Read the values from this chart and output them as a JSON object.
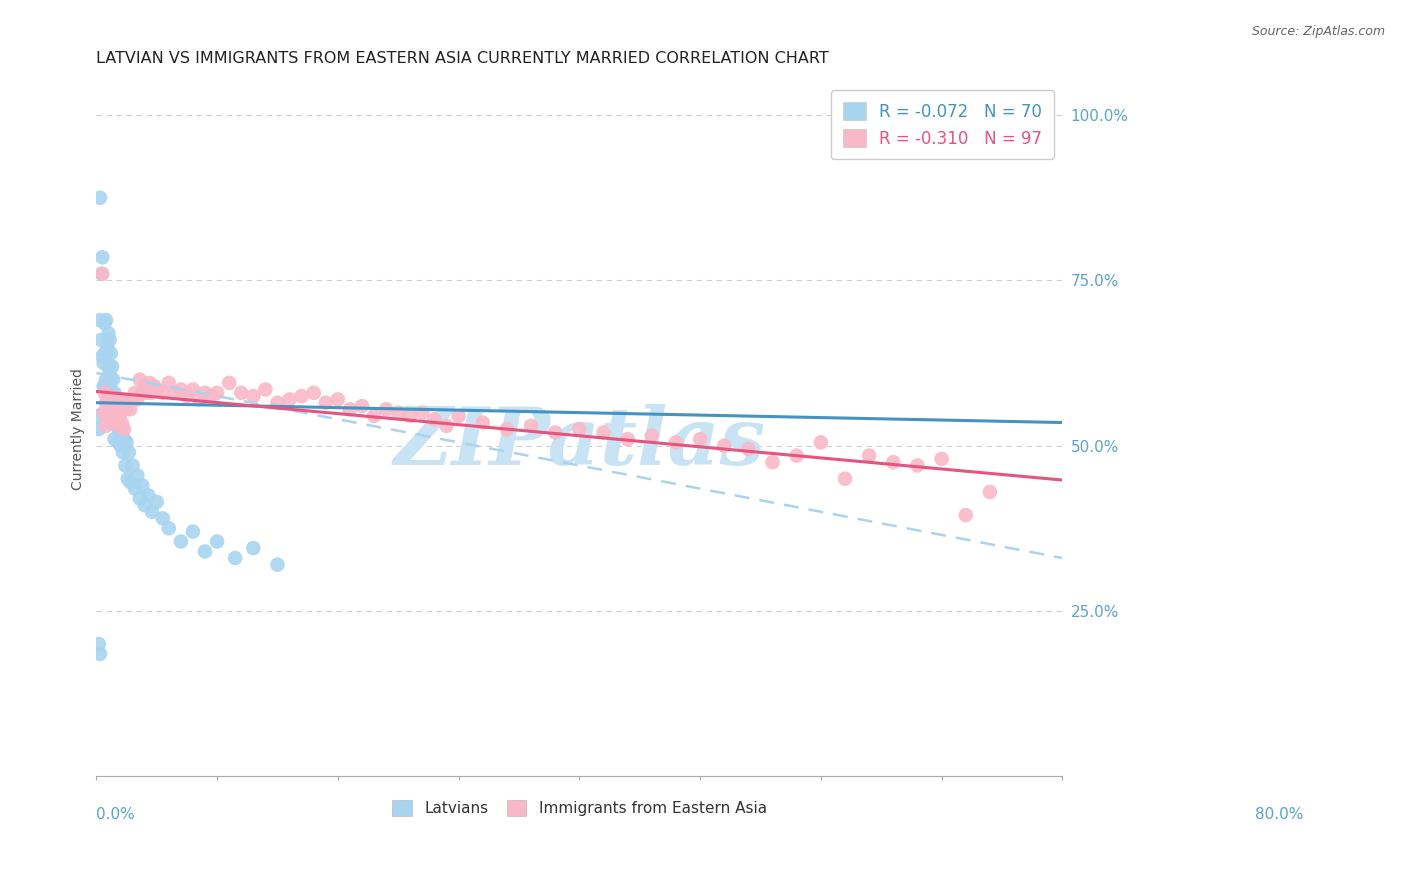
{
  "title": "LATVIAN VS IMMIGRANTS FROM EASTERN ASIA CURRENTLY MARRIED CORRELATION CHART",
  "source": "Source: ZipAtlas.com",
  "ylabel": "Currently Married",
  "right_ytick_vals": [
    1.0,
    0.75,
    0.5,
    0.25
  ],
  "right_ytick_labels": [
    "100.0%",
    "75.0%",
    "50.0%",
    "25.0%"
  ],
  "legend_label1": "R = -0.072   N = 70",
  "legend_label2": "R = -0.310   N = 97",
  "legend_label_bottom1": "Latvians",
  "legend_label_bottom2": "Immigrants from Eastern Asia",
  "blue_scatter_color": "#a8d4f0",
  "pink_scatter_color": "#f9b8c8",
  "blue_line_color": "#4393c3",
  "pink_line_color": "#e75480",
  "dashed_line_color": "#a8d4f0",
  "bg_color": "#ffffff",
  "grid_color": "#d0d0d0",
  "title_color": "#222222",
  "axis_label_color": "#5ba3d0",
  "watermark_color": "#c8e4f4",
  "xlim": [
    0.0,
    0.8
  ],
  "ylim": [
    0.0,
    1.05
  ],
  "blue_line_x0": 0.0,
  "blue_line_y0": 0.565,
  "blue_line_x1": 0.8,
  "blue_line_y1": 0.535,
  "pink_line_x0": 0.0,
  "pink_line_y0": 0.582,
  "pink_line_x1": 0.8,
  "pink_line_y1": 0.448,
  "dashed_line_x0": 0.0,
  "dashed_line_y0": 0.61,
  "dashed_line_x1": 0.8,
  "dashed_line_y1": 0.33,
  "latvian_x": [
    0.001,
    0.002,
    0.003,
    0.003,
    0.004,
    0.004,
    0.005,
    0.005,
    0.006,
    0.006,
    0.007,
    0.007,
    0.007,
    0.008,
    0.008,
    0.008,
    0.009,
    0.009,
    0.01,
    0.01,
    0.01,
    0.011,
    0.011,
    0.012,
    0.012,
    0.012,
    0.013,
    0.013,
    0.013,
    0.014,
    0.014,
    0.015,
    0.015,
    0.015,
    0.016,
    0.016,
    0.017,
    0.017,
    0.018,
    0.018,
    0.019,
    0.02,
    0.021,
    0.022,
    0.023,
    0.024,
    0.025,
    0.026,
    0.027,
    0.028,
    0.03,
    0.032,
    0.034,
    0.036,
    0.038,
    0.04,
    0.043,
    0.046,
    0.05,
    0.055,
    0.06,
    0.07,
    0.08,
    0.09,
    0.1,
    0.115,
    0.13,
    0.15,
    0.003,
    0.002
  ],
  "latvian_y": [
    0.545,
    0.525,
    0.875,
    0.69,
    0.66,
    0.76,
    0.635,
    0.785,
    0.625,
    0.59,
    0.685,
    0.64,
    0.59,
    0.69,
    0.64,
    0.6,
    0.65,
    0.59,
    0.67,
    0.62,
    0.57,
    0.66,
    0.61,
    0.64,
    0.6,
    0.555,
    0.62,
    0.58,
    0.535,
    0.6,
    0.56,
    0.58,
    0.545,
    0.51,
    0.57,
    0.535,
    0.565,
    0.53,
    0.54,
    0.505,
    0.52,
    0.5,
    0.53,
    0.49,
    0.51,
    0.47,
    0.505,
    0.45,
    0.49,
    0.445,
    0.47,
    0.435,
    0.455,
    0.42,
    0.44,
    0.41,
    0.425,
    0.4,
    0.415,
    0.39,
    0.375,
    0.355,
    0.37,
    0.34,
    0.355,
    0.33,
    0.345,
    0.32,
    0.185,
    0.2
  ],
  "pink_x": [
    0.005,
    0.006,
    0.007,
    0.008,
    0.009,
    0.01,
    0.011,
    0.012,
    0.013,
    0.014,
    0.015,
    0.016,
    0.017,
    0.018,
    0.019,
    0.02,
    0.022,
    0.024,
    0.025,
    0.026,
    0.028,
    0.03,
    0.032,
    0.034,
    0.036,
    0.038,
    0.04,
    0.042,
    0.044,
    0.046,
    0.048,
    0.05,
    0.055,
    0.06,
    0.065,
    0.07,
    0.075,
    0.08,
    0.085,
    0.09,
    0.095,
    0.1,
    0.11,
    0.12,
    0.13,
    0.14,
    0.15,
    0.16,
    0.17,
    0.18,
    0.19,
    0.2,
    0.21,
    0.22,
    0.23,
    0.24,
    0.25,
    0.26,
    0.27,
    0.28,
    0.29,
    0.3,
    0.32,
    0.34,
    0.36,
    0.38,
    0.4,
    0.42,
    0.44,
    0.46,
    0.48,
    0.5,
    0.52,
    0.54,
    0.56,
    0.58,
    0.6,
    0.62,
    0.64,
    0.66,
    0.68,
    0.7,
    0.72,
    0.74,
    0.008,
    0.01,
    0.012,
    0.014,
    0.016,
    0.009,
    0.011,
    0.013,
    0.015,
    0.017,
    0.019,
    0.021,
    0.023
  ],
  "pink_y": [
    0.76,
    0.55,
    0.58,
    0.565,
    0.57,
    0.56,
    0.575,
    0.555,
    0.565,
    0.56,
    0.54,
    0.57,
    0.555,
    0.565,
    0.545,
    0.56,
    0.57,
    0.555,
    0.56,
    0.565,
    0.555,
    0.57,
    0.58,
    0.57,
    0.6,
    0.58,
    0.59,
    0.58,
    0.595,
    0.58,
    0.59,
    0.585,
    0.58,
    0.595,
    0.58,
    0.585,
    0.575,
    0.585,
    0.57,
    0.58,
    0.575,
    0.58,
    0.595,
    0.58,
    0.575,
    0.585,
    0.565,
    0.57,
    0.575,
    0.58,
    0.565,
    0.57,
    0.555,
    0.56,
    0.545,
    0.555,
    0.55,
    0.545,
    0.55,
    0.54,
    0.53,
    0.545,
    0.535,
    0.525,
    0.53,
    0.52,
    0.525,
    0.52,
    0.51,
    0.515,
    0.505,
    0.51,
    0.5,
    0.495,
    0.475,
    0.485,
    0.505,
    0.45,
    0.485,
    0.475,
    0.47,
    0.48,
    0.395,
    0.43,
    0.53,
    0.545,
    0.555,
    0.545,
    0.54,
    0.55,
    0.545,
    0.535,
    0.545,
    0.54,
    0.53,
    0.535,
    0.525
  ]
}
